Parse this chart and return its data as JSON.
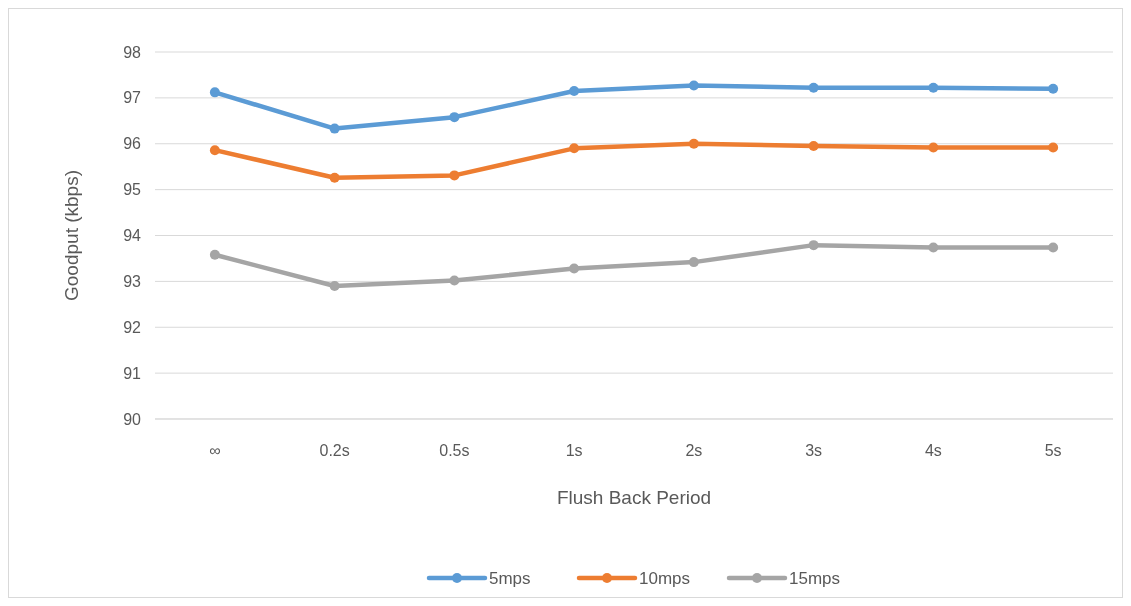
{
  "chart_data": {
    "type": "line",
    "xlabel": "Flush Back Period",
    "ylabel": "Goodput (kbps)",
    "categories": [
      "∞",
      "0.2s",
      "0.5s",
      "1s",
      "2s",
      "3s",
      "4s",
      "5s"
    ],
    "series": [
      {
        "name": "5mps",
        "color": "#5b9bd5",
        "values": [
          97.12,
          96.33,
          96.58,
          97.15,
          97.27,
          97.22,
          97.22,
          97.2
        ]
      },
      {
        "name": "10mps",
        "color": "#ed7d31",
        "values": [
          95.86,
          95.26,
          95.31,
          95.9,
          96.0,
          95.95,
          95.92,
          95.92
        ]
      },
      {
        "name": "15mps",
        "color": "#a5a5a5",
        "values": [
          93.58,
          92.9,
          93.02,
          93.28,
          93.42,
          93.79,
          93.74,
          93.74
        ]
      }
    ],
    "ylim": [
      90,
      98
    ],
    "yticks": [
      90,
      91,
      92,
      93,
      94,
      95,
      96,
      97,
      98
    ],
    "grid": "y",
    "legend": "bottom",
    "marker": "circle",
    "line_style": "solid"
  }
}
